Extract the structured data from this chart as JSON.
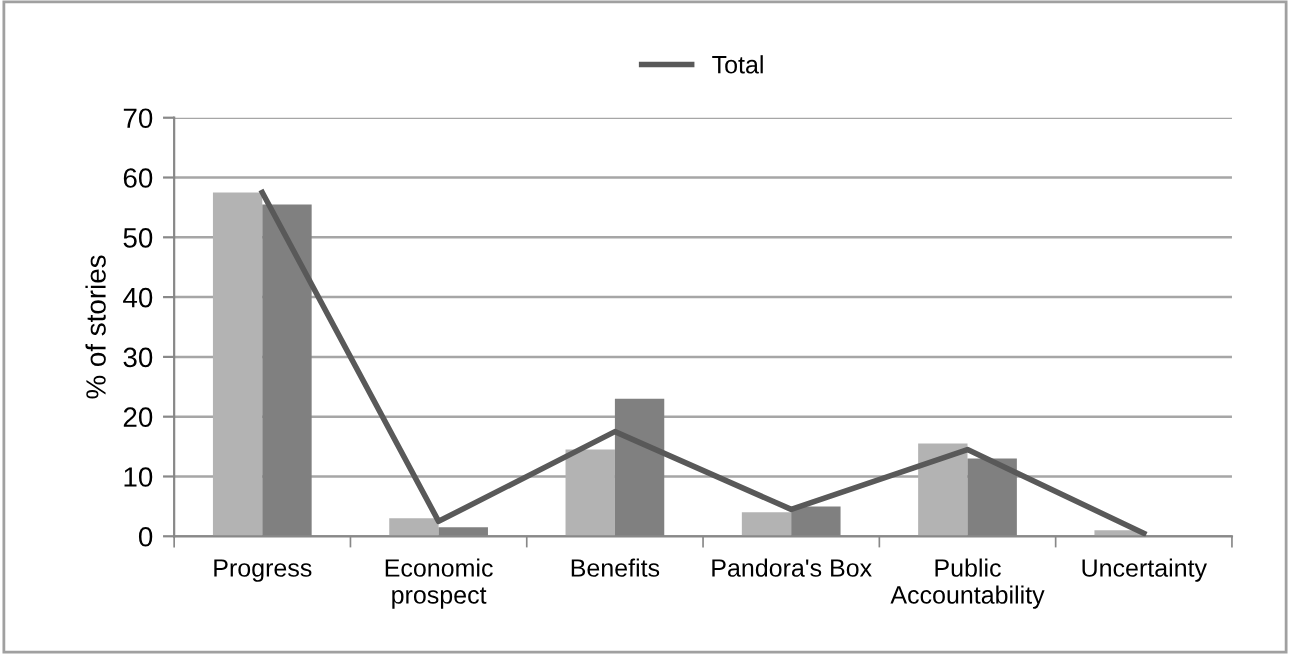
{
  "chart_data": {
    "type": "bar",
    "ylabel": "% of stories",
    "categories": [
      "Progress",
      "Economic\nprospect",
      "Benefits",
      "Pandora's Box",
      "Public\nAccountability",
      "Uncertainty"
    ],
    "series": [
      {
        "color": "#b3b3b3",
        "values": [
          57.5,
          3,
          14.5,
          4,
          15.5,
          1
        ]
      },
      {
        "color": "#808080",
        "values": [
          55.5,
          1.5,
          23,
          5,
          13,
          0
        ]
      },
      {
        "name": "Total",
        "type": "line",
        "color": "#595959",
        "values": [
          57.5,
          2.5,
          17.5,
          4.5,
          14.5,
          0.5
        ]
      }
    ],
    "ylim": [
      0,
      70
    ],
    "yticks": [
      0,
      10,
      20,
      30,
      40,
      50,
      60,
      70
    ],
    "grid": "y",
    "legend": "top",
    "marker": "none",
    "line_style": "solid"
  }
}
